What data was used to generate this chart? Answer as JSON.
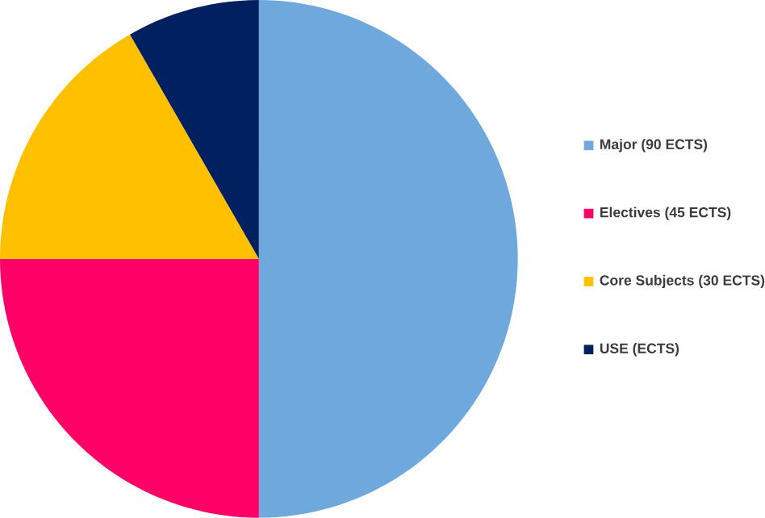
{
  "chart_data": {
    "type": "pie",
    "categories": [
      "Major (90 ECTS)",
      "Electives (45 ECTS)",
      "Core Subjects (30 ECTS)",
      "USE (ECTS)"
    ],
    "values": [
      50,
      25,
      16.7,
      8.3
    ],
    "colors": [
      "#6fa8dc",
      "#ff0066",
      "#ffc000",
      "#002060"
    ],
    "legend": "right"
  }
}
